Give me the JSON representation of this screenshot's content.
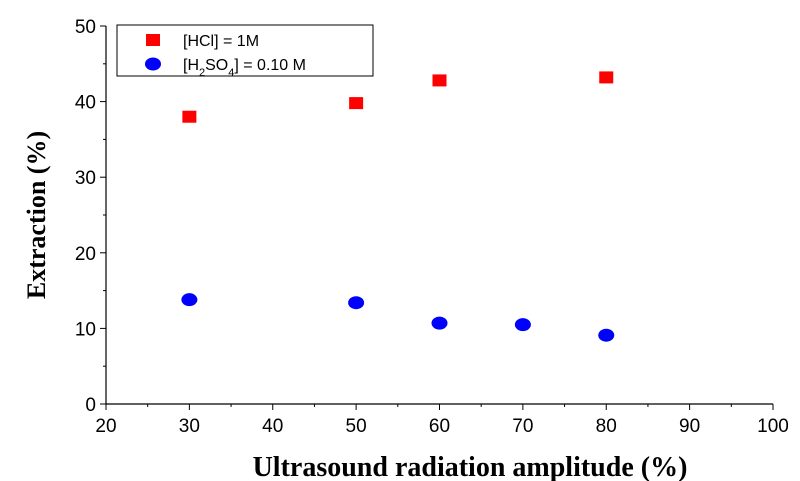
{
  "chart_data": {
    "type": "scatter",
    "title": "",
    "xlabel": "Ultrasound radiation amplitude (%)",
    "ylabel": "Extraction (%)",
    "xlim": [
      20,
      100
    ],
    "ylim": [
      0,
      50
    ],
    "x_ticks": [
      "20",
      "30",
      "40",
      "50",
      "60",
      "70",
      "80",
      "90",
      "100"
    ],
    "y_ticks": [
      "0",
      "10",
      "20",
      "30",
      "40",
      "50"
    ],
    "grid": false,
    "legend_position": "top-left",
    "series": [
      {
        "name": "[HCl] = 1M",
        "name_parts": [
          {
            "text": "[HCl] = 1M",
            "sub": false
          }
        ],
        "marker": "square",
        "color": "#ff0000",
        "x": [
          30,
          50,
          60,
          80
        ],
        "y": [
          38.0,
          39.8,
          42.8,
          43.2
        ]
      },
      {
        "name": "[H2SO4] = 0.10 M",
        "name_parts": [
          {
            "text": "[H",
            "sub": false
          },
          {
            "text": "2",
            "sub": true
          },
          {
            "text": "SO",
            "sub": false
          },
          {
            "text": "4",
            "sub": true
          },
          {
            "text": "] = 0.10 M",
            "sub": false
          }
        ],
        "marker": "circle",
        "color": "#0000ff",
        "x": [
          30,
          50,
          60,
          70,
          80
        ],
        "y": [
          13.8,
          13.4,
          10.7,
          10.5,
          9.1
        ]
      }
    ]
  }
}
